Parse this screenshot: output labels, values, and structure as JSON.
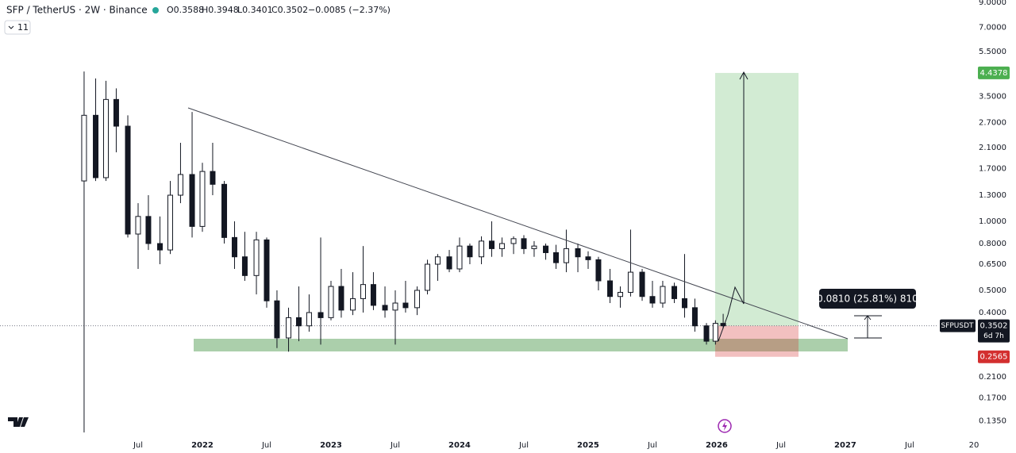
{
  "header": {
    "symbol": "SFP / TetherUS · 2W · Binance",
    "open": "O0.3588",
    "high": "H0.3948",
    "low": "L0.3401",
    "close": "C0.3502",
    "change": "−0.0085 (−2.37%)",
    "indicators": "11"
  },
  "chart_data": {
    "type": "candlestick",
    "x": [
      2021.08,
      2021.17,
      2021.25,
      2021.33,
      2021.42,
      2021.5,
      2021.58,
      2021.67,
      2021.75,
      2021.83,
      2021.92,
      2022.0,
      2022.08,
      2022.17,
      2022.25,
      2022.33,
      2022.42,
      2022.5,
      2022.58,
      2022.67,
      2022.75,
      2022.83,
      2022.92,
      2023.0,
      2023.08,
      2023.17,
      2023.25,
      2023.33,
      2023.42,
      2023.5,
      2023.58,
      2023.67,
      2023.75,
      2023.83,
      2023.92,
      2024.0,
      2024.08,
      2024.17,
      2024.25,
      2024.33,
      2024.42,
      2024.5,
      2024.58,
      2024.67,
      2024.75,
      2024.83,
      2024.92,
      2025.0,
      2025.08,
      2025.17,
      2025.25,
      2025.33,
      2025.42,
      2025.5,
      2025.58,
      2025.67,
      2025.75,
      2025.83,
      2025.92,
      2025.99,
      2026.05
    ],
    "open": [
      1.5,
      2.9,
      1.55,
      3.4,
      2.6,
      0.88,
      1.05,
      0.8,
      0.75,
      1.3,
      1.6,
      0.95,
      1.65,
      1.45,
      0.85,
      0.7,
      0.58,
      0.83,
      0.45,
      0.31,
      0.38,
      0.35,
      0.4,
      0.38,
      0.52,
      0.41,
      0.46,
      0.53,
      0.43,
      0.41,
      0.44,
      0.42,
      0.5,
      0.65,
      0.7,
      0.62,
      0.78,
      0.7,
      0.82,
      0.76,
      0.8,
      0.84,
      0.76,
      0.78,
      0.73,
      0.66,
      0.76,
      0.7,
      0.68,
      0.55,
      0.47,
      0.49,
      0.6,
      0.47,
      0.44,
      0.52,
      0.46,
      0.42,
      0.35,
      0.3,
      0.3588
    ],
    "high": [
      4.5,
      4.2,
      4.1,
      3.8,
      2.9,
      1.2,
      1.3,
      1.05,
      1.5,
      2.2,
      3.0,
      1.8,
      2.2,
      1.5,
      1.0,
      0.9,
      0.9,
      0.85,
      0.5,
      0.42,
      0.52,
      0.48,
      0.85,
      0.55,
      0.62,
      0.6,
      0.78,
      0.6,
      0.52,
      0.5,
      0.55,
      0.52,
      0.68,
      0.72,
      0.75,
      0.85,
      0.8,
      0.86,
      1.0,
      0.85,
      0.86,
      0.87,
      0.82,
      0.8,
      0.79,
      0.92,
      0.8,
      0.74,
      0.7,
      0.62,
      0.52,
      0.92,
      0.62,
      0.55,
      0.55,
      0.54,
      0.72,
      0.46,
      0.36,
      0.37,
      0.3948
    ],
    "low": [
      0.12,
      1.5,
      1.5,
      2.0,
      0.85,
      0.62,
      0.75,
      0.65,
      0.72,
      1.2,
      0.85,
      0.9,
      1.3,
      0.8,
      0.62,
      0.55,
      0.48,
      0.42,
      0.28,
      0.27,
      0.3,
      0.33,
      0.29,
      0.37,
      0.38,
      0.39,
      0.4,
      0.41,
      0.38,
      0.29,
      0.4,
      0.39,
      0.48,
      0.55,
      0.6,
      0.6,
      0.65,
      0.65,
      0.7,
      0.7,
      0.72,
      0.72,
      0.7,
      0.68,
      0.62,
      0.6,
      0.6,
      0.62,
      0.5,
      0.44,
      0.42,
      0.47,
      0.45,
      0.42,
      0.42,
      0.44,
      0.38,
      0.33,
      0.29,
      0.29,
      0.3401
    ],
    "close": [
      2.9,
      1.55,
      3.4,
      2.6,
      0.88,
      1.05,
      0.8,
      0.75,
      1.3,
      1.6,
      0.95,
      1.65,
      1.45,
      0.85,
      0.7,
      0.58,
      0.83,
      0.45,
      0.31,
      0.38,
      0.35,
      0.4,
      0.38,
      0.52,
      0.41,
      0.46,
      0.53,
      0.43,
      0.41,
      0.44,
      0.42,
      0.5,
      0.65,
      0.7,
      0.62,
      0.78,
      0.7,
      0.82,
      0.76,
      0.8,
      0.84,
      0.76,
      0.78,
      0.73,
      0.66,
      0.76,
      0.7,
      0.68,
      0.55,
      0.47,
      0.49,
      0.6,
      0.47,
      0.44,
      0.52,
      0.46,
      0.42,
      0.35,
      0.3,
      0.3588,
      0.3502
    ],
    "up_color": "#ffffff",
    "down_color": "#131722",
    "wick_color": "#131722",
    "xlim": [
      2020.426,
      2027.71
    ],
    "ylim": [
      0.1154,
      9.23
    ],
    "log_scale": true,
    "xticks": [
      {
        "value": 2021.5,
        "label": "Jul"
      },
      2022,
      {
        "value": 2022.5,
        "label": "Jul"
      },
      2023,
      {
        "value": 2023.5,
        "label": "Jul"
      },
      2024,
      {
        "value": 2024.5,
        "label": "Jul"
      },
      2025,
      {
        "value": 2025.5,
        "label": "Jul"
      },
      2026,
      {
        "value": 2026.5,
        "label": "Jul"
      },
      2027,
      {
        "value": 2027.5,
        "label": "Jul"
      },
      {
        "value": 2028,
        "label": "20"
      }
    ],
    "yticks": [
      {
        "value": 9,
        "label": "9.0000"
      },
      {
        "value": 7,
        "label": "7.0000"
      },
      {
        "value": 5.5,
        "label": "5.5000"
      },
      {
        "value": 3.5,
        "label": "3.5000"
      },
      {
        "value": 2.7,
        "label": "2.7000"
      },
      {
        "value": 2.1,
        "label": "2.1000"
      },
      {
        "value": 1.7,
        "label": "1.7000"
      },
      {
        "value": 1.3,
        "label": "1.3000"
      },
      {
        "value": 1.0,
        "label": "1.0000"
      },
      {
        "value": 0.8,
        "label": "0.8000"
      },
      {
        "value": 0.65,
        "label": "0.6500"
      },
      {
        "value": 0.5,
        "label": "0.5000"
      },
      {
        "value": 0.4,
        "label": "0.4000"
      },
      {
        "value": 0.21,
        "label": "0.2100"
      },
      {
        "value": 0.17,
        "label": "0.1700"
      },
      {
        "value": 0.135,
        "label": "0.1350"
      }
    ],
    "current_price": {
      "symbol": "SFPUSDT",
      "value": 0.3502,
      "countdown": "6d 7h"
    },
    "target": 4.4378,
    "target_color": "#4caf50",
    "stop": 0.2565,
    "stop_color": "#d32f2f",
    "measure": "0.0810 (25.81%) 810"
  }
}
